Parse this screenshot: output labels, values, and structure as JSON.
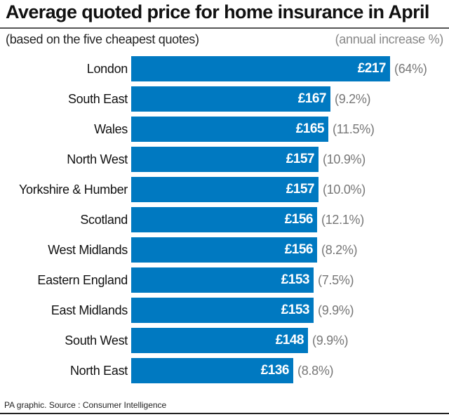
{
  "header": {
    "title": "Average quoted price for home insurance in April",
    "subtitle": "(based on the five cheapest quotes)",
    "increase_label": "(annual increase %)"
  },
  "footer": {
    "source": "PA graphic. Source : Consumer Intelligence"
  },
  "colors": {
    "bar": "#0079c1",
    "pct_text": "#777777"
  },
  "chart_data": {
    "type": "bar",
    "orientation": "horizontal",
    "title": "Average quoted price for home insurance in April",
    "subtitle": "(based on the five cheapest quotes)",
    "xlabel": "",
    "ylabel": "",
    "categories": [
      "London",
      "South East",
      "Wales",
      "North West",
      "Yorkshire & Humber",
      "Scotland",
      "West Midlands",
      "Eastern England",
      "East Midlands",
      "South West",
      "North East"
    ],
    "series": [
      {
        "name": "Average quoted price (£)",
        "values": [
          217,
          167,
          165,
          157,
          157,
          156,
          156,
          153,
          153,
          148,
          136
        ]
      },
      {
        "name": "Annual increase (%)",
        "values": [
          64,
          9.2,
          11.5,
          10.9,
          10.0,
          12.1,
          8.2,
          7.5,
          9.9,
          9.9,
          8.8
        ]
      }
    ],
    "value_labels": [
      "£217",
      "£167",
      "£165",
      "£157",
      "£157",
      "£156",
      "£156",
      "£153",
      "£153",
      "£148",
      "£136"
    ],
    "pct_labels": [
      "(64%)",
      "(9.2%)",
      "(11.5%)",
      "(10.9%)",
      "(10.0%)",
      "(12.1%)",
      "(8.2%)",
      "(7.5%)",
      "(9.9%)",
      "(9.9%)",
      "(8.8%)"
    ],
    "grid": false,
    "legend": "none"
  }
}
